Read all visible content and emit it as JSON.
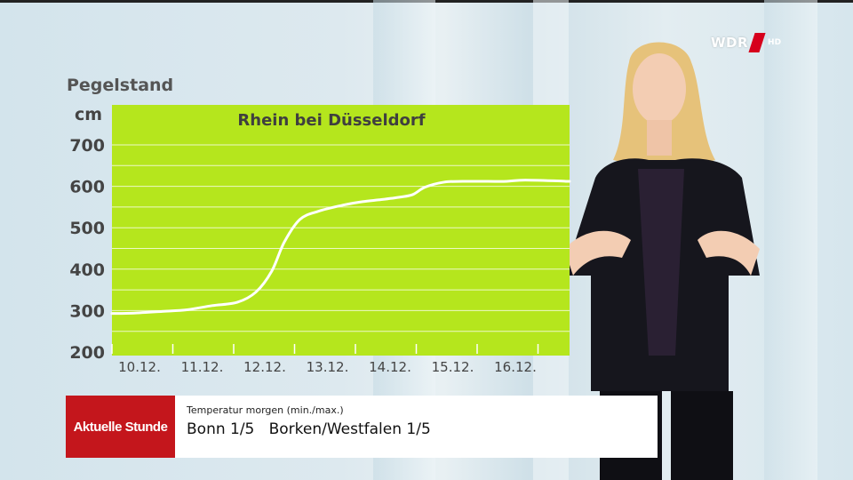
{
  "broadcaster": {
    "logo_text": "WDR",
    "quality": "HD"
  },
  "chart_data": {
    "type": "line",
    "title": "Rhein bei Düsseldorf",
    "ylabel": "Pegelstand",
    "yunit": "cm",
    "ylim": [
      200,
      700
    ],
    "yticks": [
      200,
      300,
      400,
      500,
      600,
      700
    ],
    "xticks": [
      "10.12.",
      "11.12.",
      "12.12.",
      "13.12.",
      "14.12.",
      "15.12.",
      "16.12."
    ],
    "grid": true,
    "background_color": "#b5e61d",
    "line_color": "#ffffff",
    "series": [
      {
        "x": [
          0,
          0.35,
          0.8,
          1.2,
          1.6,
          2.0,
          2.3,
          2.55,
          2.75,
          3.0,
          3.3,
          3.7,
          4.0,
          4.3,
          4.6,
          4.8,
          5.0,
          5.3,
          5.6,
          6.0,
          6.3,
          6.6,
          6.9
        ],
        "y": [
          293,
          294,
          298,
          302,
          312,
          320,
          345,
          395,
          465,
          520,
          540,
          555,
          563,
          568,
          574,
          580,
          598,
          610,
          612,
          612,
          612,
          615,
          612
        ]
      }
    ]
  },
  "lower_third": {
    "show": "Aktuelle Stunde",
    "label": "Temperatur morgen (min./max.)",
    "values": "Bonn 1/5   Borken/Westfalen 1/5"
  }
}
